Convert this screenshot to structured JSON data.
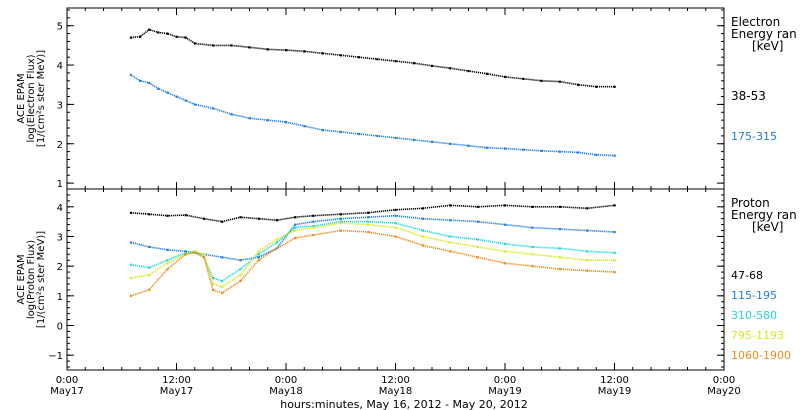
{
  "chart_data": [
    {
      "type": "scatter",
      "ylabel": [
        "ACE EPAM",
        "log(Electron Flux)",
        "[1/(cm²s ster MeV)]"
      ],
      "ylim": [
        0.85,
        5.45
      ],
      "yticks": [
        1,
        2,
        3,
        4,
        5
      ],
      "legend_title": [
        "Electron",
        "Energy ran",
        "[keV]"
      ],
      "series": [
        {
          "name": "38-53",
          "color": "#000000",
          "points": [
            [
              7,
              4.7
            ],
            [
              8,
              4.72
            ],
            [
              9,
              4.9
            ],
            [
              10,
              4.83
            ],
            [
              11,
              4.8
            ],
            [
              12,
              4.72
            ],
            [
              13,
              4.7
            ],
            [
              14,
              4.55
            ],
            [
              16,
              4.5
            ],
            [
              18,
              4.5
            ],
            [
              20,
              4.45
            ],
            [
              22,
              4.4
            ],
            [
              24,
              4.38
            ],
            [
              26,
              4.35
            ],
            [
              28,
              4.3
            ],
            [
              30,
              4.25
            ],
            [
              32,
              4.2
            ],
            [
              34,
              4.15
            ],
            [
              36,
              4.1
            ],
            [
              38,
              4.05
            ],
            [
              40,
              3.98
            ],
            [
              42,
              3.92
            ],
            [
              44,
              3.85
            ],
            [
              46,
              3.78
            ],
            [
              48,
              3.7
            ],
            [
              50,
              3.65
            ],
            [
              52,
              3.6
            ],
            [
              54,
              3.58
            ],
            [
              56,
              3.5
            ],
            [
              58,
              3.45
            ],
            [
              60,
              3.45
            ]
          ]
        },
        {
          "name": "175-315",
          "color": "#1f7de0",
          "points": [
            [
              7,
              3.75
            ],
            [
              8,
              3.6
            ],
            [
              9,
              3.55
            ],
            [
              10,
              3.4
            ],
            [
              11,
              3.3
            ],
            [
              12,
              3.2
            ],
            [
              13,
              3.1
            ],
            [
              14,
              3.0
            ],
            [
              16,
              2.9
            ],
            [
              18,
              2.75
            ],
            [
              20,
              2.65
            ],
            [
              22,
              2.6
            ],
            [
              24,
              2.55
            ],
            [
              26,
              2.45
            ],
            [
              28,
              2.35
            ],
            [
              30,
              2.3
            ],
            [
              32,
              2.25
            ],
            [
              34,
              2.2
            ],
            [
              36,
              2.15
            ],
            [
              38,
              2.1
            ],
            [
              40,
              2.05
            ],
            [
              42,
              2.0
            ],
            [
              44,
              1.95
            ],
            [
              46,
              1.9
            ],
            [
              48,
              1.88
            ],
            [
              50,
              1.85
            ],
            [
              52,
              1.82
            ],
            [
              54,
              1.8
            ],
            [
              56,
              1.78
            ],
            [
              58,
              1.72
            ],
            [
              60,
              1.7
            ]
          ]
        }
      ]
    },
    {
      "type": "scatter",
      "ylabel": [
        "ACE EPAM",
        "log(Proton Flux)",
        "[1/(cm²s ster MeV)]"
      ],
      "ylim": [
        -1.5,
        4.6
      ],
      "yticks": [
        -1,
        0,
        1,
        2,
        3,
        4
      ],
      "legend_title": [
        "Proton",
        "Energy ran",
        "[keV]"
      ],
      "series": [
        {
          "name": "47-68",
          "color": "#000000",
          "points": [
            [
              7,
              3.8
            ],
            [
              9,
              3.75
            ],
            [
              11,
              3.7
            ],
            [
              13,
              3.72
            ],
            [
              15,
              3.6
            ],
            [
              17,
              3.5
            ],
            [
              19,
              3.65
            ],
            [
              21,
              3.6
            ],
            [
              23,
              3.55
            ],
            [
              25,
              3.65
            ],
            [
              27,
              3.7
            ],
            [
              30,
              3.75
            ],
            [
              33,
              3.8
            ],
            [
              36,
              3.9
            ],
            [
              39,
              3.95
            ],
            [
              42,
              4.05
            ],
            [
              45,
              4.0
            ],
            [
              48,
              4.05
            ],
            [
              51,
              4.0
            ],
            [
              54,
              4.0
            ],
            [
              57,
              3.95
            ],
            [
              60,
              4.05
            ]
          ]
        },
        {
          "name": "115-195",
          "color": "#1f7de0",
          "points": [
            [
              7,
              2.8
            ],
            [
              9,
              2.65
            ],
            [
              11,
              2.55
            ],
            [
              13,
              2.5
            ],
            [
              15,
              2.4
            ],
            [
              17,
              2.3
            ],
            [
              19,
              2.2
            ],
            [
              21,
              2.3
            ],
            [
              23,
              2.6
            ],
            [
              25,
              3.4
            ],
            [
              27,
              3.5
            ],
            [
              30,
              3.6
            ],
            [
              33,
              3.65
            ],
            [
              36,
              3.7
            ],
            [
              39,
              3.6
            ],
            [
              42,
              3.55
            ],
            [
              45,
              3.5
            ],
            [
              48,
              3.4
            ],
            [
              51,
              3.3
            ],
            [
              54,
              3.25
            ],
            [
              57,
              3.2
            ],
            [
              60,
              3.15
            ]
          ]
        },
        {
          "name": "310-580",
          "color": "#20d8d8",
          "points": [
            [
              7,
              2.05
            ],
            [
              9,
              1.95
            ],
            [
              11,
              2.2
            ],
            [
              13,
              2.45
            ],
            [
              14,
              2.5
            ],
            [
              15,
              2.3
            ],
            [
              16,
              1.6
            ],
            [
              17,
              1.5
            ],
            [
              19,
              1.9
            ],
            [
              21,
              2.4
            ],
            [
              23,
              2.8
            ],
            [
              25,
              3.3
            ],
            [
              27,
              3.35
            ],
            [
              30,
              3.5
            ],
            [
              33,
              3.5
            ],
            [
              36,
              3.45
            ],
            [
              39,
              3.2
            ],
            [
              42,
              3.0
            ],
            [
              45,
              2.9
            ],
            [
              48,
              2.75
            ],
            [
              51,
              2.65
            ],
            [
              54,
              2.6
            ],
            [
              57,
              2.5
            ],
            [
              60,
              2.45
            ]
          ]
        },
        {
          "name": "795-1193",
          "color": "#d8e820",
          "points": [
            [
              7,
              1.6
            ],
            [
              9,
              1.7
            ],
            [
              11,
              2.1
            ],
            [
              13,
              2.4
            ],
            [
              14,
              2.5
            ],
            [
              15,
              2.4
            ],
            [
              16,
              1.4
            ],
            [
              17,
              1.3
            ],
            [
              19,
              1.7
            ],
            [
              21,
              2.5
            ],
            [
              23,
              2.9
            ],
            [
              25,
              3.2
            ],
            [
              27,
              3.3
            ],
            [
              30,
              3.45
            ],
            [
              33,
              3.4
            ],
            [
              36,
              3.3
            ],
            [
              39,
              3.0
            ],
            [
              42,
              2.8
            ],
            [
              45,
              2.65
            ],
            [
              48,
              2.5
            ],
            [
              51,
              2.4
            ],
            [
              54,
              2.3
            ],
            [
              57,
              2.2
            ],
            [
              60,
              2.2
            ]
          ]
        },
        {
          "name": "1060-1900",
          "color": "#f08a1a",
          "points": [
            [
              7,
              1.0
            ],
            [
              9,
              1.2
            ],
            [
              11,
              1.9
            ],
            [
              13,
              2.4
            ],
            [
              14,
              2.45
            ],
            [
              15,
              2.3
            ],
            [
              16,
              1.2
            ],
            [
              17,
              1.1
            ],
            [
              19,
              1.5
            ],
            [
              21,
              2.2
            ],
            [
              23,
              2.6
            ],
            [
              25,
              2.95
            ],
            [
              27,
              3.05
            ],
            [
              30,
              3.2
            ],
            [
              33,
              3.15
            ],
            [
              36,
              3.0
            ],
            [
              39,
              2.7
            ],
            [
              42,
              2.5
            ],
            [
              45,
              2.3
            ],
            [
              48,
              2.1
            ],
            [
              51,
              2.0
            ],
            [
              54,
              1.9
            ],
            [
              57,
              1.85
            ],
            [
              60,
              1.8
            ]
          ]
        }
      ]
    }
  ],
  "x_axis": {
    "xlim": [
      0,
      72
    ],
    "ticks": [
      {
        "x": 0,
        "time": "0:00",
        "day": "May17"
      },
      {
        "x": 12,
        "time": "12:00",
        "day": "May17"
      },
      {
        "x": 24,
        "time": "0:00",
        "day": "May18"
      },
      {
        "x": 36,
        "time": "12:00",
        "day": "May18"
      },
      {
        "x": 48,
        "time": "0:00",
        "day": "May19"
      },
      {
        "x": 60,
        "time": "12:00",
        "day": "May19"
      },
      {
        "x": 72,
        "time": "0:00",
        "day": "May20"
      }
    ],
    "xlabel": "hours:minutes, May 16, 2012 - May 20, 2012"
  }
}
